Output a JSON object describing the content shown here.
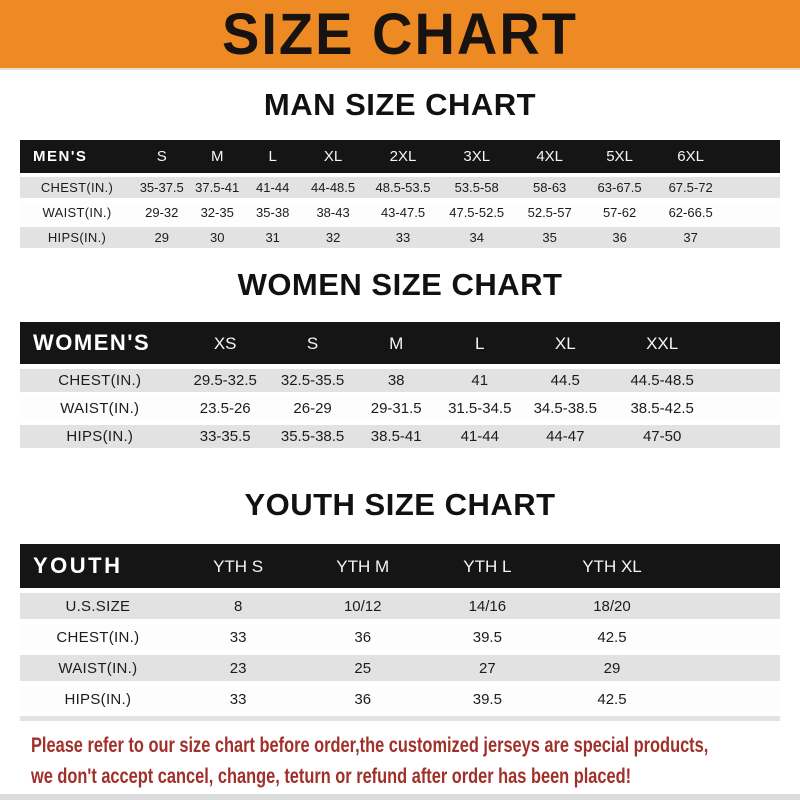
{
  "banner": {
    "title": "SIZE CHART",
    "bg_color": "#EE8A24",
    "text_color": "#181310"
  },
  "sections": [
    {
      "id": "men",
      "title": "MAN SIZE CHART",
      "table": {
        "header": [
          "MEN'S",
          "S",
          "M",
          "L",
          "XL",
          "2XL",
          "3XL",
          "4XL",
          "5XL",
          "6XL"
        ],
        "rows": [
          [
            "CHEST(IN.)",
            "35-37.5",
            "37.5-41",
            "41-44",
            "44-48.5",
            "48.5-53.5",
            "53.5-58",
            "58-63",
            "63-67.5",
            "67.5-72"
          ],
          [
            "WAIST(IN.)",
            "29-32",
            "32-35",
            "35-38",
            "38-43",
            "43-47.5",
            "47.5-52.5",
            "52.5-57",
            "57-62",
            "62-66.5"
          ],
          [
            "HIPS(IN.)",
            "29",
            "30",
            "31",
            "32",
            "33",
            "34",
            "35",
            "36",
            "37"
          ]
        ]
      }
    },
    {
      "id": "women",
      "title": "WOMEN SIZE CHART",
      "table": {
        "header": [
          "WOMEN'S",
          "XS",
          "S",
          "M",
          "L",
          "XL",
          "XXL"
        ],
        "rows": [
          [
            "CHEST(IN.)",
            "29.5-32.5",
            "32.5-35.5",
            "38",
            "41",
            "44.5",
            "44.5-48.5"
          ],
          [
            "WAIST(IN.)",
            "23.5-26",
            "26-29",
            "29-31.5",
            "31.5-34.5",
            "34.5-38.5",
            "38.5-42.5"
          ],
          [
            "HIPS(IN.)",
            "33-35.5",
            "35.5-38.5",
            "38.5-41",
            "41-44",
            "44-47",
            "47-50"
          ]
        ]
      }
    },
    {
      "id": "youth",
      "title": "YOUTH SIZE CHART",
      "table": {
        "header": [
          "YOUTH",
          "YTH S",
          "YTH M",
          "YTH L",
          "YTH XL"
        ],
        "rows": [
          [
            "U.S.SIZE",
            "8",
            "10/12",
            "14/16",
            "18/20"
          ],
          [
            "CHEST(IN.)",
            "33",
            "36",
            "39.5",
            "42.5"
          ],
          [
            "WAIST(IN.)",
            "23",
            "25",
            "27",
            "29"
          ],
          [
            "HIPS(IN.)",
            "33",
            "36",
            "39.5",
            "42.5"
          ]
        ]
      }
    }
  ],
  "table_colors": {
    "header_bg": "#151515",
    "header_text": "#FFFFFF",
    "row_gray": "#E2E2E2",
    "row_white": "#FDFDFD"
  },
  "footer": {
    "line1": "Please refer to our size chart before order,the customized jerseys are special products,",
    "line2": "we don't accept cancel, change, teturn or refund after order has been placed!",
    "text_color": "#A1302A"
  }
}
